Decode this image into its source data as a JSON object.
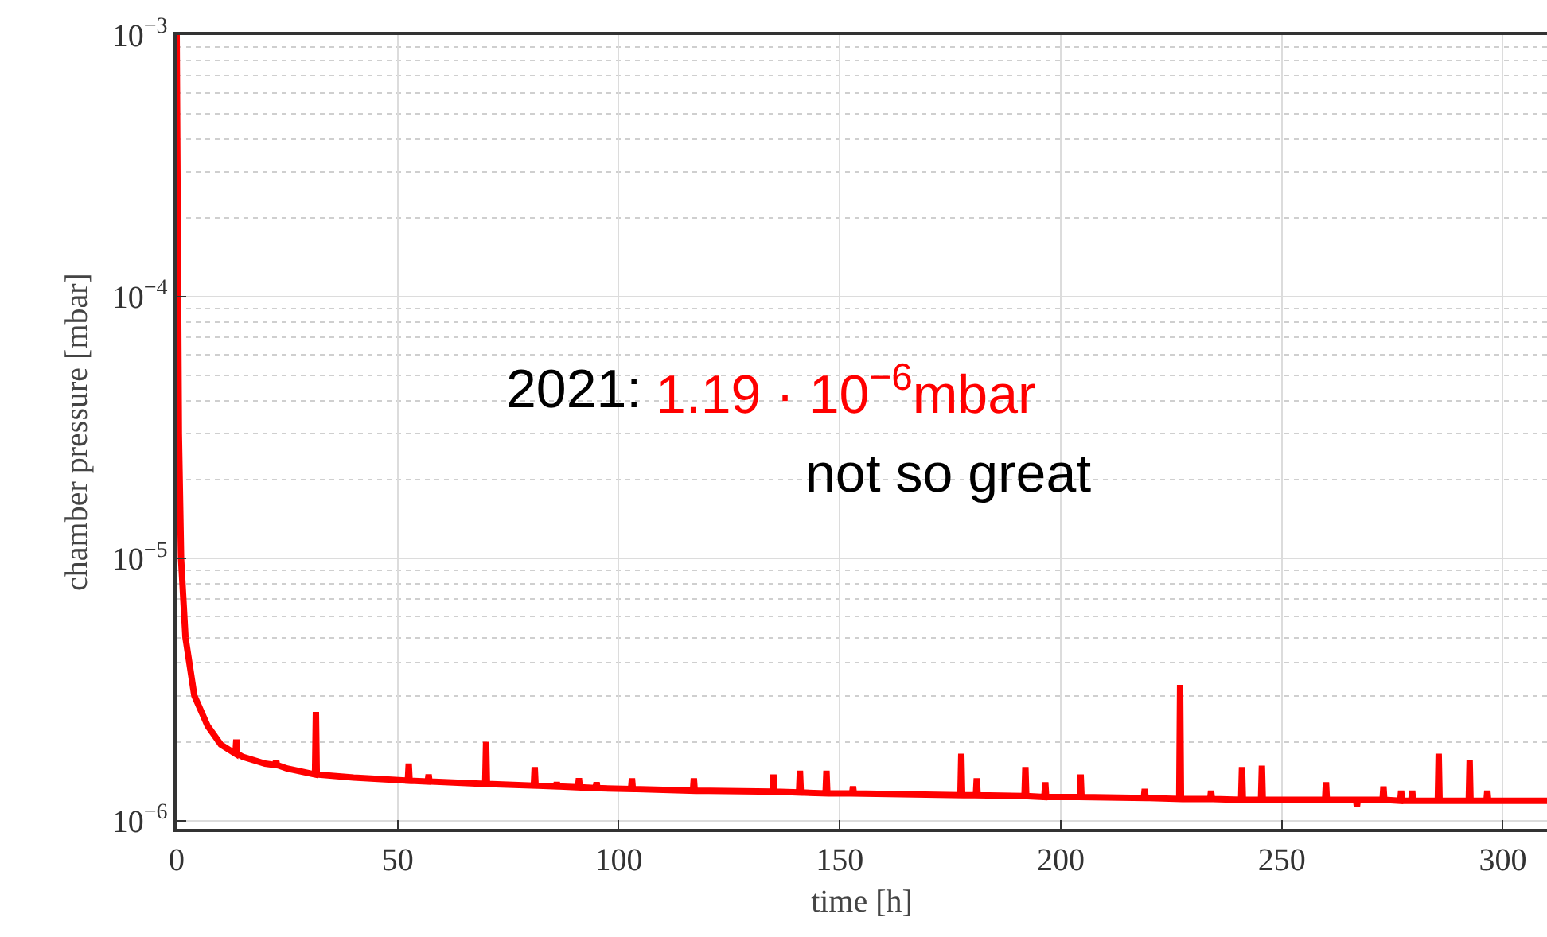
{
  "chart_data": {
    "type": "line",
    "xlabel": "time [h]",
    "ylabel": "chamber pressure [mbar]",
    "log": "y",
    "grid": true,
    "line_style": "solid",
    "marker": "none",
    "xlim": [
      0,
      310
    ],
    "xticks": [
      0,
      50,
      100,
      150,
      200,
      250,
      300
    ],
    "ylim": [
      9.3e-07,
      0.001
    ],
    "yticks": [
      {
        "value": 1e-06,
        "label": "10$^{−6}$"
      },
      {
        "value": 1e-05,
        "label": "10$^{−5}$"
      },
      {
        "value": 0.0001,
        "label": "10$^{−4}$"
      },
      {
        "value": 0.001,
        "label": "10$^{−3}$"
      }
    ],
    "annotations": [
      "2021:",
      "1.19 · 10$^{−6}$mbar",
      "not so great"
    ],
    "series": [
      {
        "color": "#ff0000",
        "x": [
          0,
          0.5,
          1,
          2,
          4,
          7,
          10,
          13.3,
          13.5,
          13.7,
          15,
          20,
          22.3,
          22.5,
          22.7,
          25,
          31.3,
          31.5,
          31.7,
          40,
          52.3,
          52.5,
          52.7,
          56.8,
          57,
          57.2,
          69.8,
          70,
          70.2,
          80.8,
          81,
          81.2,
          85.8,
          86,
          86.2,
          90.8,
          91,
          91.2,
          94.8,
          95,
          95.2,
          102.8,
          103,
          103.2,
          116.8,
          117,
          117.2,
          134.8,
          135,
          135.2,
          140.8,
          141,
          141.2,
          146.8,
          147,
          147.2,
          152.8,
          153,
          153.2,
          177.3,
          177.5,
          177.7,
          180.8,
          181,
          181.2,
          191.8,
          192,
          192.2,
          196.3,
          196.5,
          196.7,
          204.3,
          204.5,
          204.7,
          218.8,
          219,
          219.2,
          226.8,
          227,
          227.2,
          233.8,
          234,
          234.2,
          240.8,
          241,
          241.2,
          245.3,
          245.5,
          245.7,
          259.8,
          260,
          260.2,
          266.8,
          267,
          267.2,
          272.8,
          273,
          273.2,
          276.8,
          277,
          277.2,
          279.3,
          279.5,
          279.7,
          285.3,
          285.5,
          285.7,
          292.3,
          292.5,
          292.7,
          296.3,
          296.5,
          296.7,
          310
        ],
        "values": [
          0.001,
          3e-05,
          1e-05,
          5e-06,
          3e-06,
          2.3e-06,
          1.95e-06,
          1.8e-06,
          2.04e-06,
          1.8e-06,
          1.75e-06,
          1.65e-06,
          1.63e-06,
          1.7e-06,
          1.63e-06,
          1.58e-06,
          1.5e-06,
          2.6e-06,
          1.5e-06,
          1.46e-06,
          1.42e-06,
          1.65e-06,
          1.42e-06,
          1.41e-06,
          1.5e-06,
          1.41e-06,
          1.38e-06,
          2e-06,
          1.38e-06,
          1.36e-06,
          1.6e-06,
          1.36e-06,
          1.35e-06,
          1.4e-06,
          1.35e-06,
          1.34e-06,
          1.45e-06,
          1.34e-06,
          1.33e-06,
          1.4e-06,
          1.33e-06,
          1.32e-06,
          1.45e-06,
          1.32e-06,
          1.3e-06,
          1.45e-06,
          1.3e-06,
          1.29e-06,
          1.5e-06,
          1.29e-06,
          1.28e-06,
          1.55e-06,
          1.28e-06,
          1.27e-06,
          1.55e-06,
          1.27e-06,
          1.27e-06,
          1.35e-06,
          1.27e-06,
          1.25e-06,
          1.8e-06,
          1.25e-06,
          1.25e-06,
          1.45e-06,
          1.25e-06,
          1.24e-06,
          1.6e-06,
          1.24e-06,
          1.23e-06,
          1.4e-06,
          1.23e-06,
          1.23e-06,
          1.5e-06,
          1.23e-06,
          1.22e-06,
          1.32e-06,
          1.22e-06,
          1.21e-06,
          3.3e-06,
          1.21e-06,
          1.21e-06,
          1.3e-06,
          1.21e-06,
          1.2e-06,
          1.6e-06,
          1.2e-06,
          1.2e-06,
          1.62e-06,
          1.2e-06,
          1.2e-06,
          1.4e-06,
          1.2e-06,
          1.2e-06,
          1.13e-06,
          1.2e-06,
          1.2e-06,
          1.35e-06,
          1.2e-06,
          1.19e-06,
          1.3e-06,
          1.19e-06,
          1.19e-06,
          1.3e-06,
          1.19e-06,
          1.19e-06,
          1.8e-06,
          1.19e-06,
          1.19e-06,
          1.7e-06,
          1.19e-06,
          1.19e-06,
          1.3e-06,
          1.19e-06,
          1.19e-06
        ]
      }
    ]
  }
}
